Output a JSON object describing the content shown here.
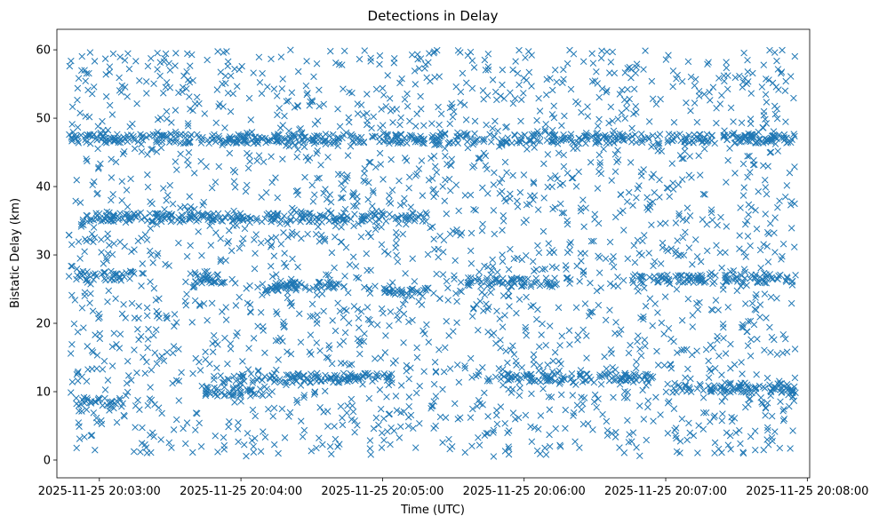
{
  "chart_data": {
    "type": "scatter",
    "title": "Detections in Delay",
    "xlabel": "Time (UTC)",
    "ylabel": "Bistatic Delay (km)",
    "marker": "x",
    "color": "#1f77b4",
    "grid": false,
    "legend": "none",
    "xlim": [
      "2025-11-25 20:02:42",
      "2025-11-25 20:08:01"
    ],
    "ylim": [
      -2.6,
      63
    ],
    "xticks": [
      "2025-11-25 20:03:00",
      "2025-11-25 20:04:00",
      "2025-11-25 20:05:00",
      "2025-11-25 20:06:00",
      "2025-11-25 20:07:00",
      "2025-11-25 20:08:00"
    ],
    "yticks": [
      "0",
      "10",
      "20",
      "30",
      "40",
      "50",
      "60"
    ],
    "data_start": "2025-11-25 20:02:47",
    "data_end": "2025-11-25 20:07:55",
    "delay_range": [
      0.5,
      60
    ],
    "tracks": [
      {
        "delay": 47,
        "start": "2025-11-25 20:02:47",
        "end": "2025-11-25 20:07:55"
      },
      {
        "delay": 35.5,
        "start": "2025-11-25 20:02:52",
        "end": "2025-11-25 20:05:20"
      },
      {
        "delay": 27,
        "start": "2025-11-25 20:02:50",
        "end": "2025-11-25 20:03:15"
      },
      {
        "delay": 26.5,
        "start": "2025-11-25 20:03:40",
        "end": "2025-11-25 20:03:58"
      },
      {
        "delay": 25.5,
        "start": "2025-11-25 20:04:10",
        "end": "2025-11-25 20:04:45"
      },
      {
        "delay": 24.5,
        "start": "2025-11-25 20:05:00",
        "end": "2025-11-25 20:05:20"
      },
      {
        "delay": 26,
        "start": "2025-11-25 20:05:35",
        "end": "2025-11-25 20:06:20"
      },
      {
        "delay": 26.5,
        "start": "2025-11-25 20:06:45",
        "end": "2025-11-25 20:07:55"
      },
      {
        "delay": 12,
        "start": "2025-11-25 20:03:50",
        "end": "2025-11-25 20:05:05"
      },
      {
        "delay": 12,
        "start": "2025-11-25 20:05:50",
        "end": "2025-11-25 20:06:55"
      },
      {
        "delay": 10,
        "start": "2025-11-25 20:03:45",
        "end": "2025-11-25 20:04:10"
      },
      {
        "delay": 10.5,
        "start": "2025-11-25 20:07:00",
        "end": "2025-11-25 20:07:55"
      },
      {
        "delay": 8.5,
        "start": "2025-11-25 20:02:50",
        "end": "2025-11-25 20:03:10"
      }
    ]
  }
}
